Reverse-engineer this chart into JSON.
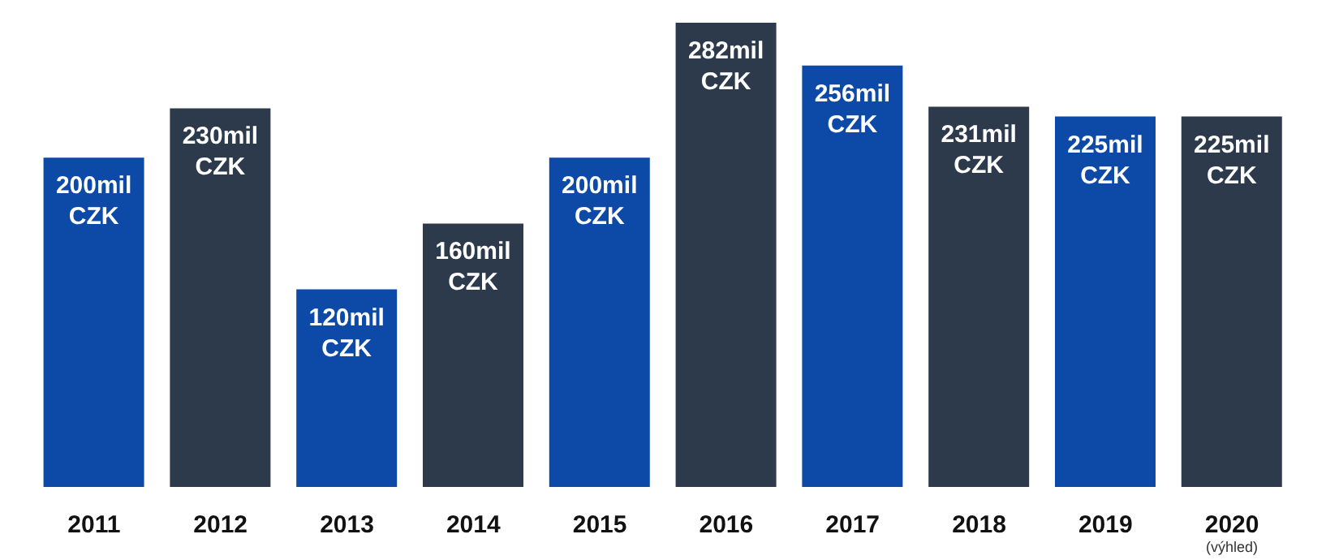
{
  "chart_data": {
    "type": "bar",
    "categories": [
      "2011",
      "2012",
      "2013",
      "2014",
      "2015",
      "2016",
      "2017",
      "2018",
      "2019",
      "2020 (výhled)"
    ],
    "values": [
      200,
      230,
      120,
      160,
      200,
      282,
      256,
      231,
      225,
      225
    ],
    "colors": [
      "#0d4aa8",
      "#2c3a4c",
      "#0d4aa8",
      "#2c3a4c",
      "#0d4aa8",
      "#2c3a4c",
      "#0d4aa8",
      "#2c3a4c",
      "#0d4aa8",
      "#2c3a4c"
    ],
    "value_labels": [
      "200mil CZK",
      "230mil CZK",
      "120mil CZK",
      "160mil CZK",
      "200mil CZK",
      "282mil CZK",
      "256mil CZK",
      "231mil CZK",
      "225mil CZK",
      "225mil CZK"
    ],
    "grid": false,
    "legend": false
  }
}
